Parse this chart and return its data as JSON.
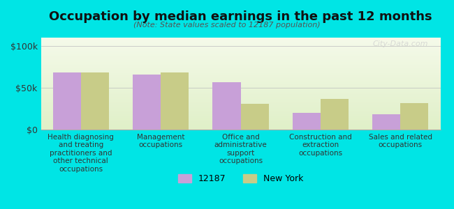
{
  "title": "Occupation by median earnings in the past 12 months",
  "subtitle": "(Note: State values scaled to 12187 population)",
  "categories": [
    "Health diagnosing\nand treating\npractitioners and\nother technical\noccupations",
    "Management\noccupations",
    "Office and\nadministrative\nsupport\noccupations",
    "Construction and\nextraction\noccupations",
    "Sales and related\noccupations"
  ],
  "values_12187": [
    68000,
    66000,
    57000,
    20000,
    18000
  ],
  "values_ny": [
    68000,
    68000,
    31000,
    37000,
    32000
  ],
  "color_12187": "#c8a0d8",
  "color_ny": "#c8cc88",
  "background_color": "#00e5e5",
  "plot_bg_top": "#f0f8e8",
  "plot_bg_bottom": "#e8f8d8",
  "yticks": [
    0,
    50000,
    100000
  ],
  "ytick_labels": [
    "$0",
    "$50k",
    "$100k"
  ],
  "ylim": [
    0,
    110000
  ],
  "watermark": "City-Data.com",
  "legend_label_12187": "12187",
  "legend_label_ny": "New York",
  "bar_width": 0.35
}
